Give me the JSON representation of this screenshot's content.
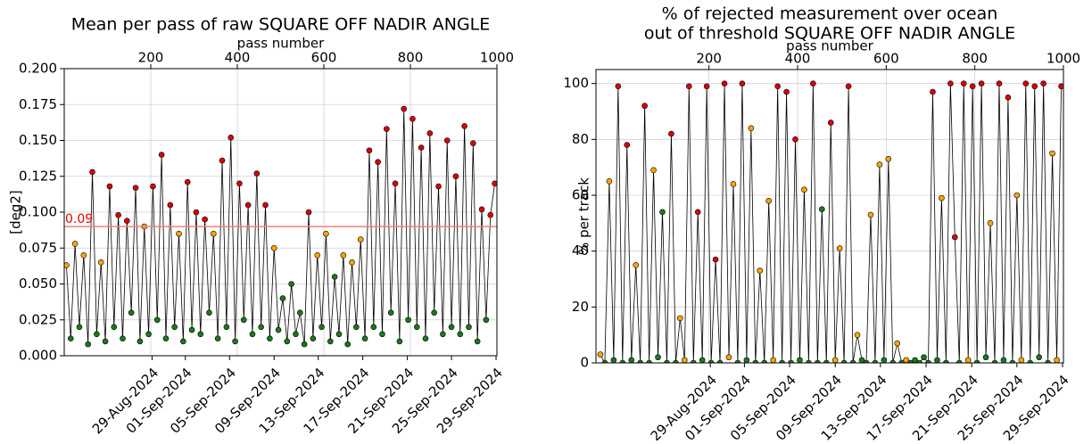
{
  "chart_data": [
    {
      "type": "scatter-line",
      "title": [
        "Mean per pass of raw SQUARE OFF NADIR ANGLE"
      ],
      "x_label": "pass number",
      "y_label": "[deg2]",
      "xlim": [
        0,
        1000
      ],
      "xticks": [
        200,
        400,
        600,
        800,
        1000
      ],
      "date_ticks": [
        {
          "value": 203,
          "label": "29-Aug-2024"
        },
        {
          "value": 280,
          "label": "01-Sep-2024"
        },
        {
          "value": 382,
          "label": "05-Sep-2024"
        },
        {
          "value": 485,
          "label": "09-Sep-2024"
        },
        {
          "value": 587,
          "label": "13-Sep-2024"
        },
        {
          "value": 690,
          "label": "17-Sep-2024"
        },
        {
          "value": 793,
          "label": "21-Sep-2024"
        },
        {
          "value": 895,
          "label": "25-Sep-2024"
        },
        {
          "value": 998,
          "label": "29-Sep-2024"
        }
      ],
      "ylim": [
        0,
        0.2
      ],
      "yticks": [
        {
          "value": 0,
          "label": "0.000"
        },
        {
          "value": 0.025,
          "label": "0.025"
        },
        {
          "value": 0.05,
          "label": "0.050"
        },
        {
          "value": 0.075,
          "label": "0.075"
        },
        {
          "value": 0.1,
          "label": "0.100"
        },
        {
          "value": 0.125,
          "label": "0.125"
        },
        {
          "value": 0.15,
          "label": "0.150"
        },
        {
          "value": 0.175,
          "label": "0.175"
        },
        {
          "value": 0.2,
          "label": "0.200"
        }
      ],
      "grid": true,
      "threshold": {
        "value": 0.09,
        "color": "#f08080",
        "label_color": "#e00000"
      },
      "line_color": "#000000",
      "point_palette": [
        "#1a7a1a",
        "#ffa500",
        "#dd0000"
      ],
      "series": [
        {
          "x": [
            5,
            15,
            25,
            35,
            45,
            55,
            65,
            75,
            85,
            95,
            105,
            115,
            125,
            135,
            145,
            155,
            165,
            175,
            185,
            195,
            205,
            215,
            225,
            235,
            245,
            255,
            265,
            275,
            285,
            295,
            305,
            315,
            325,
            335,
            345,
            355,
            365,
            375,
            385,
            395,
            405,
            415,
            425,
            435,
            445,
            455,
            465,
            475,
            485,
            495,
            505,
            515,
            525,
            535,
            545,
            555,
            565,
            575,
            585,
            595,
            605,
            615,
            625,
            635,
            645,
            655,
            665,
            675,
            685,
            695,
            705,
            715,
            725,
            735,
            745,
            755,
            765,
            775,
            785,
            795,
            805,
            815,
            825,
            835,
            845,
            855,
            865,
            875,
            885,
            895,
            905,
            915,
            925,
            935,
            945,
            955,
            965,
            975,
            985,
            995
          ],
          "values": [
            0.063,
            0.012,
            0.078,
            0.02,
            0.07,
            0.008,
            0.128,
            0.015,
            0.065,
            0.01,
            0.118,
            0.02,
            0.098,
            0.012,
            0.094,
            0.03,
            0.117,
            0.01,
            0.09,
            0.015,
            0.118,
            0.025,
            0.14,
            0.012,
            0.105,
            0.02,
            0.085,
            0.01,
            0.121,
            0.018,
            0.1,
            0.015,
            0.095,
            0.03,
            0.085,
            0.012,
            0.136,
            0.02,
            0.152,
            0.01,
            0.12,
            0.025,
            0.105,
            0.015,
            0.127,
            0.02,
            0.105,
            0.012,
            0.075,
            0.018,
            0.04,
            0.01,
            0.05,
            0.015,
            0.03,
            0.008,
            0.1,
            0.012,
            0.07,
            0.02,
            0.085,
            0.01,
            0.055,
            0.015,
            0.07,
            0.008,
            0.065,
            0.02,
            0.081,
            0.012,
            0.143,
            0.02,
            0.135,
            0.015,
            0.158,
            0.03,
            0.12,
            0.01,
            0.172,
            0.025,
            0.165,
            0.02,
            0.145,
            0.012,
            0.155,
            0.03,
            0.118,
            0.015,
            0.15,
            0.02,
            0.125,
            0.015,
            0.16,
            0.02,
            0.148,
            0.01,
            0.102,
            0.025,
            0.098,
            0.12
          ],
          "color_index": [
            1,
            0,
            1,
            0,
            1,
            0,
            2,
            0,
            1,
            0,
            2,
            0,
            2,
            0,
            2,
            0,
            2,
            0,
            1,
            0,
            2,
            0,
            2,
            0,
            2,
            0,
            1,
            0,
            2,
            0,
            2,
            0,
            2,
            0,
            1,
            0,
            2,
            0,
            2,
            0,
            2,
            0,
            2,
            0,
            2,
            0,
            2,
            0,
            1,
            0,
            0,
            0,
            0,
            0,
            0,
            0,
            2,
            0,
            1,
            0,
            1,
            0,
            0,
            0,
            1,
            0,
            1,
            0,
            1,
            0,
            2,
            0,
            2,
            0,
            2,
            0,
            2,
            0,
            2,
            0,
            2,
            0,
            2,
            0,
            2,
            0,
            2,
            0,
            2,
            0,
            2,
            0,
            2,
            0,
            2,
            0,
            2,
            0,
            2,
            2
          ]
        }
      ]
    },
    {
      "type": "scatter-line",
      "title": [
        "% of rejected measurement over ocean",
        "out of threshold SQUARE OFF NADIR ANGLE"
      ],
      "x_label": "pass number",
      "y_label": "% per track",
      "xlim": [
        -55,
        1000
      ],
      "xticks": [
        200,
        400,
        600,
        800,
        1000
      ],
      "date_ticks": [
        {
          "value": 203,
          "label": "29-Aug-2024"
        },
        {
          "value": 280,
          "label": "01-Sep-2024"
        },
        {
          "value": 382,
          "label": "05-Sep-2024"
        },
        {
          "value": 485,
          "label": "09-Sep-2024"
        },
        {
          "value": 587,
          "label": "13-Sep-2024"
        },
        {
          "value": 690,
          "label": "17-Sep-2024"
        },
        {
          "value": 793,
          "label": "21-Sep-2024"
        },
        {
          "value": 895,
          "label": "25-Sep-2024"
        },
        {
          "value": 998,
          "label": "29-Sep-2024"
        }
      ],
      "ylim": [
        0,
        105
      ],
      "yticks": [
        0,
        20,
        40,
        60,
        80,
        100
      ],
      "grid": true,
      "line_color": "#000000",
      "point_palette": [
        "#1a7a1a",
        "#ffa500",
        "#dd0000"
      ],
      "series": [
        {
          "x": [
            -45,
            -35,
            -25,
            -15,
            -5,
            5,
            15,
            25,
            35,
            45,
            55,
            65,
            75,
            85,
            95,
            105,
            115,
            125,
            135,
            145,
            155,
            165,
            175,
            185,
            195,
            205,
            215,
            225,
            235,
            245,
            255,
            265,
            275,
            285,
            295,
            305,
            315,
            325,
            335,
            345,
            355,
            365,
            375,
            385,
            395,
            405,
            415,
            425,
            435,
            445,
            455,
            465,
            475,
            485,
            495,
            505,
            515,
            525,
            535,
            545,
            555,
            565,
            575,
            585,
            595,
            605,
            615,
            625,
            635,
            645,
            655,
            665,
            675,
            685,
            695,
            705,
            715,
            725,
            735,
            745,
            755,
            765,
            775,
            785,
            795,
            805,
            815,
            825,
            835,
            845,
            855,
            865,
            875,
            885,
            895,
            905,
            915,
            925,
            935,
            945,
            955,
            965,
            975,
            985,
            995
          ],
          "values": [
            3,
            0,
            65,
            1,
            99,
            0,
            78,
            1,
            35,
            0,
            92,
            0,
            69,
            2,
            54,
            0,
            82,
            0,
            16,
            1,
            99,
            0,
            54,
            1,
            99,
            0,
            37,
            0,
            100,
            2,
            64,
            0,
            100,
            1,
            84,
            0,
            33,
            0,
            58,
            1,
            99,
            0,
            97,
            0,
            80,
            1,
            62,
            0,
            100,
            0,
            55,
            0,
            86,
            1,
            41,
            0,
            99,
            0,
            10,
            1,
            0,
            53,
            0,
            71,
            1,
            73,
            0,
            7,
            0,
            1,
            0,
            1,
            0,
            2,
            0,
            97,
            1,
            59,
            0,
            100,
            45,
            0,
            100,
            1,
            99,
            0,
            100,
            2,
            50,
            0,
            100,
            1,
            95,
            0,
            60,
            1,
            100,
            0,
            99,
            2,
            100,
            0,
            75,
            1,
            99
          ],
          "color_index": [
            1,
            0,
            1,
            0,
            2,
            0,
            2,
            0,
            1,
            0,
            2,
            0,
            1,
            0,
            0,
            0,
            2,
            0,
            1,
            1,
            2,
            0,
            2,
            0,
            2,
            0,
            2,
            0,
            2,
            1,
            1,
            0,
            2,
            0,
            1,
            0,
            1,
            0,
            1,
            1,
            2,
            0,
            2,
            0,
            2,
            0,
            1,
            0,
            2,
            0,
            0,
            0,
            2,
            1,
            1,
            0,
            2,
            0,
            1,
            0,
            0,
            1,
            0,
            1,
            0,
            1,
            0,
            1,
            0,
            1,
            0,
            0,
            0,
            0,
            0,
            2,
            0,
            1,
            0,
            2,
            2,
            0,
            2,
            1,
            2,
            0,
            2,
            0,
            1,
            0,
            2,
            0,
            2,
            0,
            1,
            1,
            2,
            0,
            2,
            0,
            2,
            0,
            1,
            1,
            2
          ]
        }
      ]
    }
  ]
}
